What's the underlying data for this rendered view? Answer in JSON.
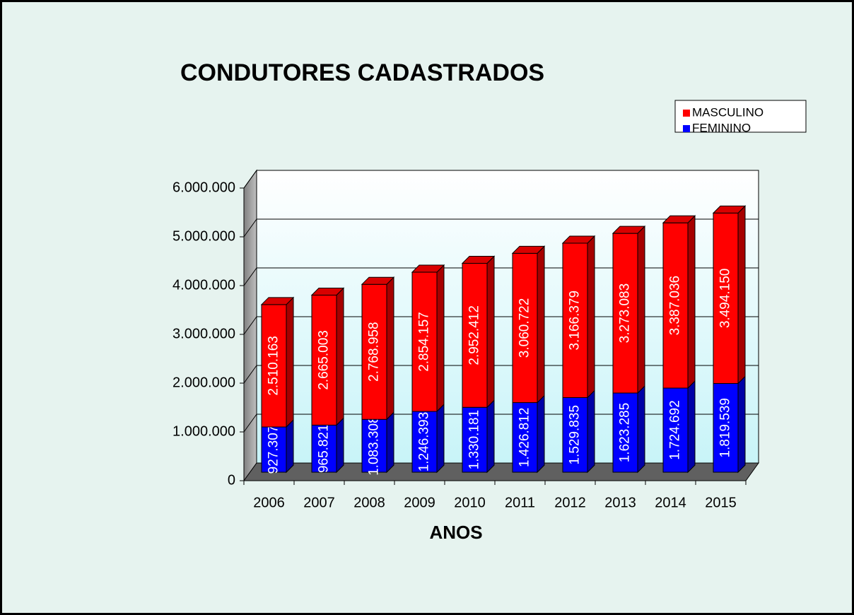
{
  "chart_data": {
    "type": "bar3d-stacked",
    "title": "CONDUTORES CADASTRADOS",
    "x_label": "ANOS",
    "categories": [
      "2006",
      "2007",
      "2008",
      "2009",
      "2010",
      "2011",
      "2012",
      "2013",
      "2014",
      "2015"
    ],
    "series": [
      {
        "name": "FEMININO",
        "color": "#0000ff",
        "values": [
          927307,
          965821,
          1083308,
          1246393,
          1330181,
          1426812,
          1529835,
          1623285,
          1724692,
          1819539
        ],
        "value_labels": [
          "927.307",
          "965.821",
          "1.083.308",
          "1.246.393",
          "1.330.181",
          "1.426.812",
          "1.529.835",
          "1.623.285",
          "1.724.692",
          "1.819.539"
        ]
      },
      {
        "name": "MASCULINO",
        "color": "#ff0000",
        "values": [
          2510163,
          2665003,
          2768958,
          2854157,
          2952412,
          3060722,
          3166379,
          3273083,
          3387036,
          3494150
        ],
        "value_labels": [
          "2.510.163",
          "2.665.003",
          "2.768.958",
          "2.854.157",
          "2.952.412",
          "3.060.722",
          "3.166.379",
          "3.273.083",
          "3.387.036",
          "3.494.150"
        ]
      }
    ],
    "ylim": [
      0,
      6000000
    ],
    "yticks": [
      0,
      {
        "value": 1000000,
        "label": "1.000.000"
      },
      {
        "value": 2000000,
        "label": "2.000.000"
      },
      {
        "value": 3000000,
        "label": "3.000.000"
      },
      {
        "value": 4000000,
        "label": "4.000.000"
      },
      {
        "value": 5000000,
        "label": "5.000.000"
      },
      {
        "value": 6000000,
        "label": "6.000.000"
      }
    ],
    "grid": true,
    "legend": "top-right"
  }
}
